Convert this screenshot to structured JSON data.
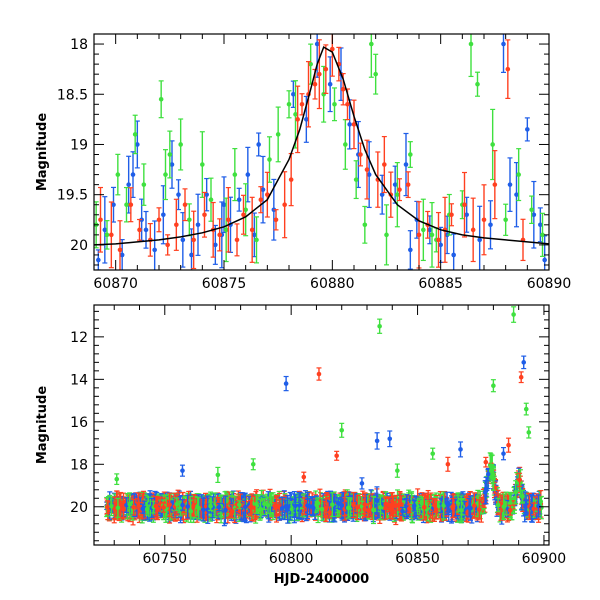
{
  "colors": {
    "blue": "#1f5ee8",
    "green": "#3fe03f",
    "red": "#ff4020",
    "model": "#000000"
  },
  "chart_data": [
    {
      "type": "scatter",
      "title": "",
      "xlabel": "",
      "ylabel": "Magnitude",
      "xlim": [
        60869,
        60890
      ],
      "ylim": [
        20.25,
        17.9
      ],
      "y_inverted": true,
      "xticks": [
        60870,
        60875,
        60880,
        60885,
        60890
      ],
      "yticks": [
        18,
        18.5,
        19,
        19.5,
        20
      ],
      "errorbars": true,
      "grid": false,
      "legend": "none",
      "model_curve": {
        "x": [
          60869,
          60870,
          60871,
          60872,
          60873,
          60874,
          60875,
          60876,
          60877,
          60878,
          60878.5,
          60879,
          60879.3,
          60879.6,
          60880,
          60880.5,
          60881,
          60881.5,
          60882,
          60883,
          60884,
          60885,
          60886,
          60887,
          60888,
          60889,
          60890
        ],
        "y": [
          20.0,
          19.99,
          19.97,
          19.95,
          19.92,
          19.88,
          19.82,
          19.72,
          19.55,
          19.15,
          18.85,
          18.45,
          18.2,
          18.03,
          18.08,
          18.35,
          18.72,
          19.05,
          19.3,
          19.6,
          19.76,
          19.85,
          19.9,
          19.93,
          19.95,
          19.97,
          19.99
        ]
      },
      "series": [
        {
          "color": "blue",
          "x": [
            60869.2,
            60869.5,
            60869.9,
            60870.3,
            60870.6,
            60871.0,
            60871.4,
            60871.8,
            60872.2,
            60872.6,
            60873.1,
            60873.5,
            60873.8,
            60874.2,
            60874.6,
            60875.0,
            60875.3,
            60875.7,
            60876.1,
            60876.4,
            60876.8,
            60877.3,
            60878.2,
            60878.8,
            60879.3,
            60879.9,
            60880.4,
            60880.8,
            60881.2,
            60881.7,
            60882.3,
            60882.9,
            60883.4,
            60883.9,
            60884.5,
            60885.0,
            60885.6,
            60886.2,
            60886.8,
            60887.3,
            60887.9,
            60888.5,
            60889.0,
            60889.6,
            60889.8,
            60870.8,
            60871.2,
            60872.9,
            60874.9,
            60876.6,
            60883.6,
            60885.3,
            60888.2,
            60889.3
          ],
          "y": [
            20.15,
            19.85,
            19.6,
            20.1,
            19.4,
            19.0,
            19.85,
            20.05,
            19.7,
            19.2,
            19.95,
            20.1,
            19.8,
            19.5,
            20.0,
            19.6,
            19.8,
            19.55,
            19.3,
            19.9,
            19.45,
            19.65,
            18.5,
            18.75,
            18.0,
            18.4,
            18.3,
            18.8,
            19.1,
            19.3,
            19.5,
            19.4,
            19.2,
            19.75,
            19.85,
            20.0,
            20.1,
            19.7,
            19.95,
            19.8,
            18.0,
            19.5,
            18.85,
            19.8,
            20.15,
            19.3,
            19.75,
            19.5,
            19.9,
            19.0,
            20.05,
            19.9,
            19.4,
            19.7
          ]
        },
        {
          "color": "green",
          "x": [
            60869.1,
            60869.6,
            60870.1,
            60870.5,
            60870.9,
            60871.3,
            60872.1,
            60872.5,
            60873.0,
            60873.4,
            60874.0,
            60874.4,
            60875.1,
            60875.5,
            60876.0,
            60876.5,
            60877.1,
            60877.5,
            60878.3,
            60879.0,
            60879.6,
            60880.1,
            60880.6,
            60881.1,
            60881.5,
            60882.0,
            60882.5,
            60883.0,
            60883.6,
            60884.2,
            60884.8,
            60885.4,
            60886.0,
            60886.7,
            60887.4,
            60888.0,
            60888.6,
            60889.2,
            60889.7,
            60872.3,
            60878.0,
            60881.8,
            60884.6,
            60886.4
          ],
          "y": [
            19.8,
            19.9,
            19.3,
            19.6,
            18.9,
            19.4,
            18.55,
            19.1,
            19.0,
            19.75,
            19.2,
            19.55,
            19.85,
            19.3,
            19.65,
            19.95,
            19.15,
            18.9,
            18.7,
            18.2,
            18.5,
            18.6,
            19.0,
            19.35,
            19.8,
            18.3,
            19.9,
            19.5,
            19.1,
            19.85,
            19.95,
            19.7,
            19.6,
            18.4,
            19.0,
            19.75,
            19.3,
            19.65,
            19.9,
            19.3,
            18.6,
            18.0,
            19.9,
            18.0
          ]
        },
        {
          "color": "red",
          "x": [
            60869.3,
            60869.8,
            60870.2,
            60870.7,
            60871.1,
            60871.6,
            60872.0,
            60872.4,
            60872.8,
            60873.2,
            60873.6,
            60874.1,
            60874.5,
            60874.8,
            60875.2,
            60875.6,
            60875.9,
            60876.3,
            60876.7,
            60877.0,
            60877.4,
            60877.8,
            60878.1,
            60878.4,
            60878.6,
            60878.9,
            60879.2,
            60879.4,
            60879.7,
            60880.0,
            60880.3,
            60880.5,
            60880.7,
            60881.0,
            60881.3,
            60881.6,
            60882.1,
            60882.4,
            60882.7,
            60883.1,
            60883.5,
            60884.0,
            60884.4,
            60884.9,
            60885.2,
            60885.5,
            60886.1,
            60886.5,
            60887.0,
            60887.5,
            60888.1,
            60888.8
          ],
          "y": [
            19.75,
            19.9,
            20.05,
            19.6,
            19.85,
            19.95,
            19.75,
            20.0,
            19.8,
            19.6,
            19.95,
            19.7,
            19.85,
            19.9,
            19.75,
            19.95,
            19.7,
            19.85,
            19.55,
            19.5,
            19.75,
            19.6,
            19.35,
            18.75,
            18.6,
            18.5,
            18.4,
            18.3,
            18.25,
            18.05,
            18.2,
            18.45,
            18.6,
            18.8,
            19.1,
            19.25,
            19.35,
            19.2,
            19.5,
            19.45,
            19.4,
            19.9,
            19.8,
            19.95,
            19.85,
            19.7,
            19.6,
            19.85,
            19.75,
            19.4,
            18.25,
            19.95
          ]
        }
      ]
    },
    {
      "type": "scatter",
      "title": "",
      "xlabel": "HJD-2400000",
      "ylabel": "Magnitude",
      "xlim": [
        60722,
        60902
      ],
      "ylim": [
        21.8,
        10.5
      ],
      "y_inverted": true,
      "xticks": [
        60750,
        60800,
        60850,
        60900
      ],
      "yticks": [
        12,
        14,
        16,
        18,
        20
      ],
      "errorbars": true,
      "grid": false,
      "legend": "none",
      "outliers": [
        {
          "color": "blue",
          "x": 60798,
          "y": 14.2
        },
        {
          "color": "red",
          "x": 60811,
          "y": 13.75
        },
        {
          "color": "green",
          "x": 60835,
          "y": 11.5
        },
        {
          "color": "green",
          "x": 60888,
          "y": 10.95
        },
        {
          "color": "green",
          "x": 60880,
          "y": 14.3
        },
        {
          "color": "red",
          "x": 60891,
          "y": 13.9
        },
        {
          "color": "blue",
          "x": 60892,
          "y": 13.2
        },
        {
          "color": "green",
          "x": 60893,
          "y": 15.4
        },
        {
          "color": "green",
          "x": 60894,
          "y": 16.5
        },
        {
          "color": "blue",
          "x": 60757,
          "y": 18.3
        },
        {
          "color": "green",
          "x": 60771,
          "y": 18.5
        },
        {
          "color": "green",
          "x": 60785,
          "y": 18.0
        },
        {
          "color": "red",
          "x": 60818,
          "y": 17.6
        },
        {
          "color": "green",
          "x": 60820,
          "y": 16.4
        },
        {
          "color": "blue",
          "x": 60834,
          "y": 16.9
        },
        {
          "color": "blue",
          "x": 60839,
          "y": 16.8
        },
        {
          "color": "green",
          "x": 60842,
          "y": 18.3
        },
        {
          "color": "green",
          "x": 60856,
          "y": 17.5
        },
        {
          "color": "red",
          "x": 60862,
          "y": 18.0
        },
        {
          "color": "blue",
          "x": 60867,
          "y": 17.3
        },
        {
          "color": "red",
          "x": 60877,
          "y": 17.9
        },
        {
          "color": "blue",
          "x": 60884,
          "y": 17.5
        },
        {
          "color": "red",
          "x": 60886,
          "y": 17.1
        },
        {
          "color": "green",
          "x": 60731,
          "y": 18.7
        },
        {
          "color": "red",
          "x": 60805,
          "y": 18.6
        },
        {
          "color": "blue",
          "x": 60828,
          "y": 18.9
        }
      ],
      "baseline_magnitude": 20.0
    }
  ]
}
